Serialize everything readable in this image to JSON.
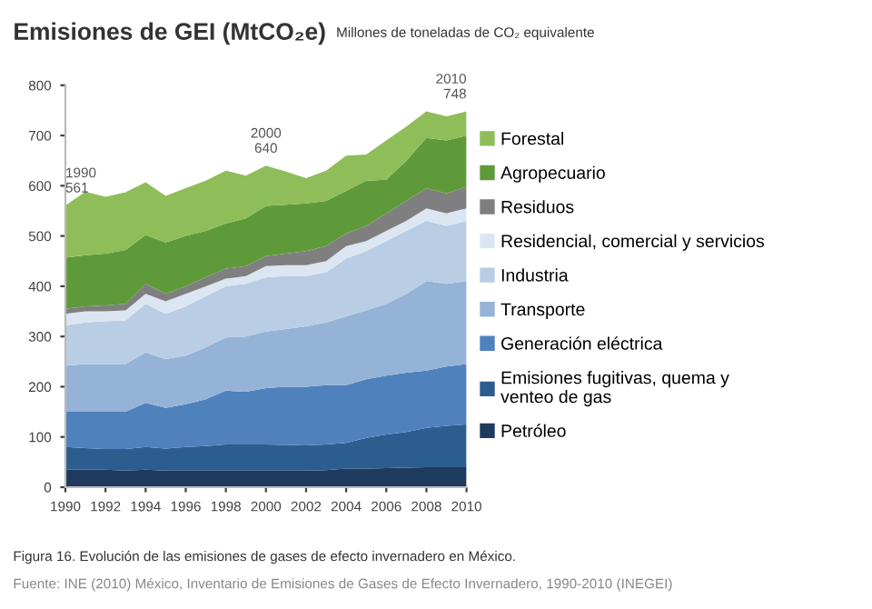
{
  "chart_data": {
    "type": "area",
    "stacked": true,
    "title": "Emisiones de GEI (MtCO₂e)",
    "subtitle": "Millones de toneladas de CO₂ equivalente",
    "x": [
      1990,
      1991,
      1992,
      1993,
      1994,
      1995,
      1996,
      1997,
      1998,
      1999,
      2000,
      2001,
      2002,
      2003,
      2004,
      2005,
      2006,
      2007,
      2008,
      2009,
      2010
    ],
    "xlim": [
      1990,
      2010
    ],
    "xticks": [
      1990,
      1992,
      1994,
      1996,
      1998,
      2000,
      2002,
      2004,
      2006,
      2008,
      2010
    ],
    "ylim": [
      0,
      800
    ],
    "yticks": [
      0,
      100,
      200,
      300,
      400,
      500,
      600,
      700,
      800
    ],
    "grid": false,
    "legend": "right",
    "series": [
      {
        "name": "Petróleo",
        "color": "#1f3a5f",
        "values": [
          35,
          35,
          35,
          33,
          35,
          33,
          33,
          33,
          33,
          33,
          33,
          33,
          33,
          34,
          37,
          37,
          38,
          39,
          40,
          40,
          40
        ]
      },
      {
        "name": "Emisiones fugitivas, quema y venteo de gas",
        "color": "#2c5d8f",
        "values": [
          45,
          43,
          41,
          43,
          45,
          44,
          47,
          49,
          52,
          52,
          52,
          51,
          50,
          51,
          51,
          61,
          67,
          71,
          78,
          82,
          85
        ]
      },
      {
        "name": "Generación eléctrica",
        "color": "#4f81bd",
        "values": [
          70,
          72,
          74,
          74,
          88,
          81,
          85,
          93,
          107,
          105,
          112,
          116,
          117,
          118,
          115,
          117,
          117,
          118,
          114,
          118,
          120
        ]
      },
      {
        "name": "Transporte",
        "color": "#95b3d7",
        "values": [
          92,
          95,
          95,
          95,
          100,
          97,
          97,
          103,
          106,
          110,
          113,
          115,
          120,
          125,
          137,
          137,
          143,
          157,
          178,
          165,
          165
        ]
      },
      {
        "name": "Industria",
        "color": "#b9cde5",
        "values": [
          80,
          83,
          85,
          87,
          97,
          90,
          98,
          102,
          102,
          105,
          108,
          105,
          100,
          100,
          115,
          118,
          125,
          125,
          120,
          115,
          120
        ]
      },
      {
        "name": "Residencial, comercial y servicios",
        "color": "#dce6f2",
        "values": [
          23,
          22,
          20,
          20,
          20,
          25,
          25,
          20,
          15,
          15,
          22,
          22,
          22,
          22,
          25,
          20,
          20,
          20,
          25,
          25,
          25
        ]
      },
      {
        "name": "Residuos",
        "color": "#7f7f7f",
        "values": [
          10,
          10,
          12,
          13,
          20,
          15,
          15,
          18,
          20,
          20,
          20,
          23,
          28,
          30,
          25,
          30,
          35,
          40,
          40,
          40,
          43
        ]
      },
      {
        "name": "Agropecuario",
        "color": "#5f9a3a",
        "values": [
          102,
          102,
          103,
          107,
          97,
          102,
          100,
          92,
          90,
          95,
          100,
          97,
          95,
          90,
          85,
          90,
          67,
          80,
          100,
          105,
          102
        ]
      },
      {
        "name": "Forestal",
        "color": "#8fbd5a",
        "values": [
          104,
          126,
          113,
          115,
          105,
          93,
          95,
          100,
          105,
          85,
          80,
          66,
          50,
          60,
          70,
          52,
          78,
          68,
          53,
          48,
          48
        ]
      }
    ],
    "annotations": [
      {
        "text": "1990\n561",
        "x": 1990,
        "y": 561
      },
      {
        "text": "2000\n640",
        "x": 2000,
        "y": 640
      },
      {
        "text": "2010\n748",
        "x": 2010,
        "y": 748
      },
      "Figura 16. Evolución de las emisiones de gases de efecto invernadero en México.",
      "Fuente: INE (2010) México, Inventario de Emisiones de Gases de Efecto Invernadero, 1990-2010 (INEGEI)"
    ]
  }
}
